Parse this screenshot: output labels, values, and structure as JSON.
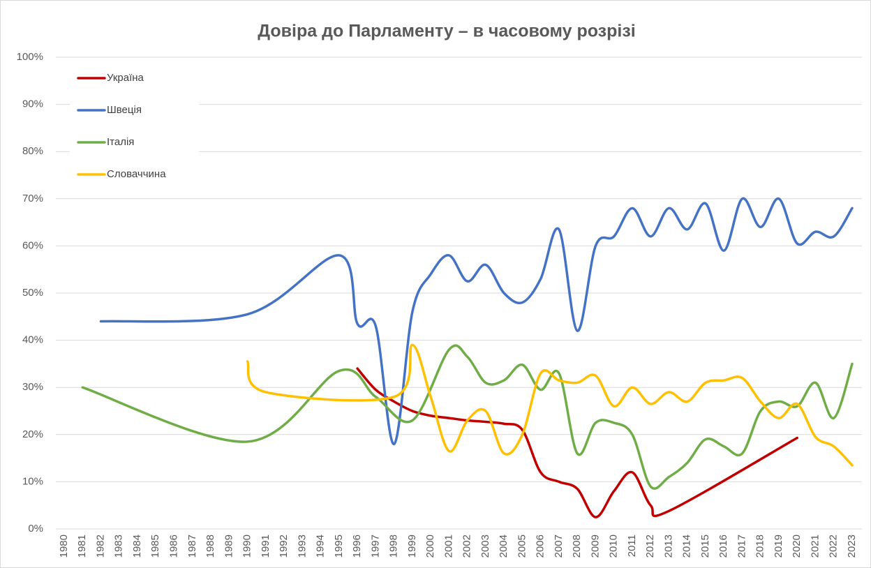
{
  "chart_data": {
    "type": "line",
    "title": "Довіра до Парламенту – в часовому розрізі",
    "xlim": [
      1980,
      2023
    ],
    "xticks": [
      1980,
      1981,
      1982,
      1983,
      1984,
      1985,
      1986,
      1987,
      1988,
      1989,
      1990,
      1991,
      1992,
      1993,
      1994,
      1995,
      1996,
      1997,
      1998,
      1999,
      2000,
      2001,
      2002,
      2003,
      2004,
      2005,
      2006,
      2007,
      2008,
      2009,
      2010,
      2011,
      2012,
      2013,
      2014,
      2015,
      2016,
      2017,
      2018,
      2019,
      2020,
      2021,
      2022,
      2023
    ],
    "ylim": [
      0,
      100
    ],
    "yticks": [
      {
        "value": 0,
        "label": "0%"
      },
      {
        "value": 10,
        "label": "10%"
      },
      {
        "value": 20,
        "label": "20%"
      },
      {
        "value": 30,
        "label": "30%"
      },
      {
        "value": 40,
        "label": "40%"
      },
      {
        "value": 50,
        "label": "50%"
      },
      {
        "value": 60,
        "label": "60%"
      },
      {
        "value": 70,
        "label": "70%"
      },
      {
        "value": 80,
        "label": "80%"
      },
      {
        "value": 90,
        "label": "90%"
      },
      {
        "value": 100,
        "label": "100%"
      }
    ],
    "grid": true,
    "legend": "upper left",
    "smooth": true,
    "series": [
      {
        "name": "Україна",
        "color": "#c00000",
        "x": [
          1996,
          1997,
          1998,
          1999,
          2000,
          2001,
          2002,
          2003,
          2004,
          2005,
          2006,
          2007,
          2008,
          2009,
          2010,
          2011,
          2012,
          2013,
          2020
        ],
        "values": [
          34,
          29.5,
          27,
          25,
          24,
          23.5,
          23,
          22.7,
          22.3,
          21,
          12,
          10,
          8.5,
          2.5,
          8,
          12,
          5,
          3.8,
          19.3
        ]
      },
      {
        "name": "Швеція",
        "color": "#4472c4",
        "x": [
          1982,
          1990,
          1995,
          1996,
          1997,
          1998,
          1999,
          2000,
          2001,
          2002,
          2003,
          2004,
          2005,
          2006,
          2007,
          2008,
          2009,
          2010,
          2011,
          2012,
          2013,
          2014,
          2015,
          2016,
          2017,
          2018,
          2019,
          2020,
          2021,
          2022,
          2023
        ],
        "values": [
          44,
          45.5,
          58,
          43.5,
          43,
          18,
          46,
          54,
          58,
          52.5,
          56,
          50,
          48,
          53,
          63.5,
          42,
          60,
          62,
          68,
          62,
          68,
          63.5,
          69,
          59,
          70,
          64,
          70,
          60.5,
          63,
          62,
          68
        ]
      },
      {
        "name": "Італія",
        "color": "#70ad47",
        "x": [
          1981,
          1990,
          1995,
          1997,
          1999,
          2001,
          2002,
          2003,
          2004,
          2005,
          2006,
          2007,
          2008,
          2009,
          2010,
          2011,
          2012,
          2013,
          2014,
          2015,
          2016,
          2017,
          2018,
          2019,
          2020,
          2021,
          2022,
          2023
        ],
        "values": [
          30,
          18.5,
          33.5,
          28,
          23,
          38,
          36.5,
          31,
          31.5,
          34.8,
          29.5,
          33,
          16,
          22.5,
          22.5,
          20,
          9,
          11,
          14,
          19,
          17.5,
          16,
          25,
          27,
          26,
          31,
          23.5,
          35
        ]
      },
      {
        "name": "Словаччина",
        "color": "#ffc000",
        "x": [
          1990,
          1991,
          1998,
          1999,
          2000,
          2001,
          2002,
          2003,
          2004,
          2005,
          2006,
          2007,
          2008,
          2009,
          2010,
          2011,
          2012,
          2013,
          2014,
          2015,
          2016,
          2017,
          2018,
          2019,
          2020,
          2021,
          2022,
          2023
        ],
        "values": [
          35.5,
          29,
          28,
          39,
          28,
          16.5,
          23,
          25,
          16,
          20,
          33,
          31.5,
          31,
          32.5,
          26,
          30,
          26.5,
          29,
          27,
          31,
          31.5,
          32,
          27,
          23.5,
          26.5,
          19.5,
          17.5,
          13.5
        ]
      }
    ]
  }
}
